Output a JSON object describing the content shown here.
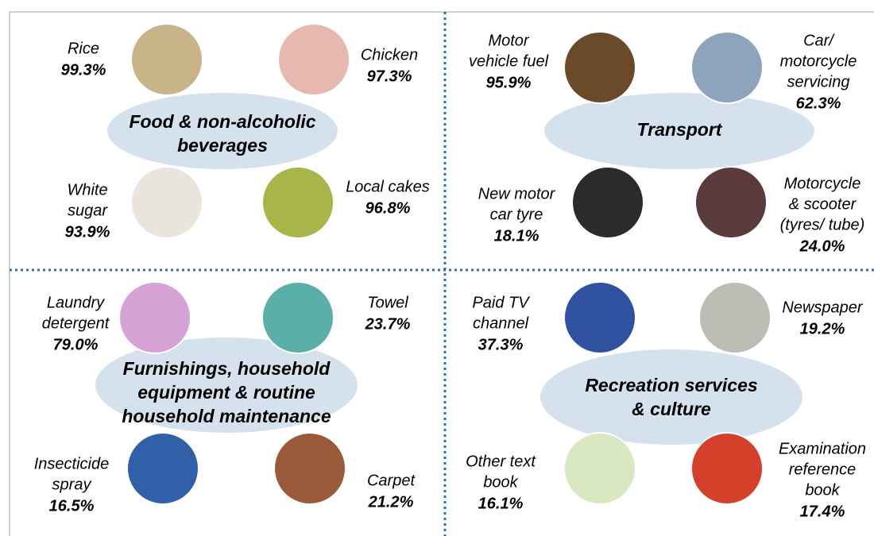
{
  "panels": [
    {
      "title": [
        "Food & non-alcoholic",
        "beverages"
      ],
      "items": [
        {
          "label": [
            "Rice"
          ],
          "value": "99.3%"
        },
        {
          "label": [
            "Chicken"
          ],
          "value": "97.3%"
        },
        {
          "label": [
            "White",
            "sugar"
          ],
          "value": "93.9%"
        },
        {
          "label": [
            "Local cakes"
          ],
          "value": "96.8%"
        }
      ]
    },
    {
      "title": [
        "Transport"
      ],
      "items": [
        {
          "label": [
            "Motor",
            "vehicle fuel"
          ],
          "value": "95.9%"
        },
        {
          "label": [
            "Car/",
            "motorcycle",
            "servicing"
          ],
          "value": "62.3%"
        },
        {
          "label": [
            "New motor",
            "car tyre"
          ],
          "value": "18.1%"
        },
        {
          "label": [
            "Motorcycle",
            "& scooter",
            "(tyres/ tube)"
          ],
          "value": "24.0%"
        }
      ]
    },
    {
      "title": [
        "Furnishings, household",
        "equipment & routine",
        "household maintenance"
      ],
      "items": [
        {
          "label": [
            "Laundry",
            "detergent"
          ],
          "value": "79.0%"
        },
        {
          "label": [
            "Towel"
          ],
          "value": "23.7%"
        },
        {
          "label": [
            "Insecticide",
            "spray"
          ],
          "value": "16.5%"
        },
        {
          "label": [
            "Carpet"
          ],
          "value": "21.2%"
        }
      ]
    },
    {
      "title": [
        "Recreation services",
        "& culture"
      ],
      "items": [
        {
          "label": [
            "Paid TV",
            "channel"
          ],
          "value": "37.3%"
        },
        {
          "label": [
            "Newspaper"
          ],
          "value": "19.2%"
        },
        {
          "label": [
            "Other text",
            "book"
          ],
          "value": "16.1%"
        },
        {
          "label": [
            "Examination",
            "reference",
            "book"
          ],
          "value": "17.4%"
        }
      ]
    }
  ]
}
